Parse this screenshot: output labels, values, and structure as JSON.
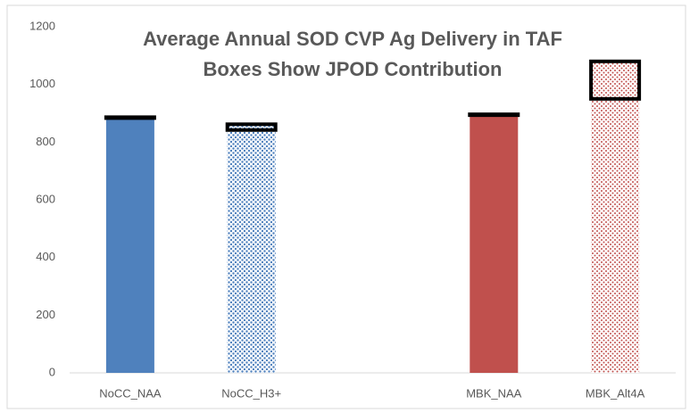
{
  "chart_data": {
    "type": "bar",
    "title": [
      "Average Annual SOD CVP Ag Delivery in TAF",
      "Boxes Show JPOD Contribution"
    ],
    "categories": [
      "NoCC_NAA",
      "NoCC_H3+",
      null,
      "MBK_NAA",
      "MBK_Alt4A"
    ],
    "values": [
      885,
      842,
      null,
      895,
      950
    ],
    "jpod_values": [
      null,
      20,
      null,
      null,
      130
    ],
    "colors": [
      "#4f81bd",
      "#4f81bd",
      null,
      "#c0504d",
      "#c0504d"
    ],
    "dotted": [
      false,
      true,
      null,
      false,
      true
    ],
    "ylim": [
      0,
      1200
    ],
    "yticks": [
      0,
      200,
      400,
      600,
      800,
      1000,
      1200
    ],
    "grid": false
  }
}
